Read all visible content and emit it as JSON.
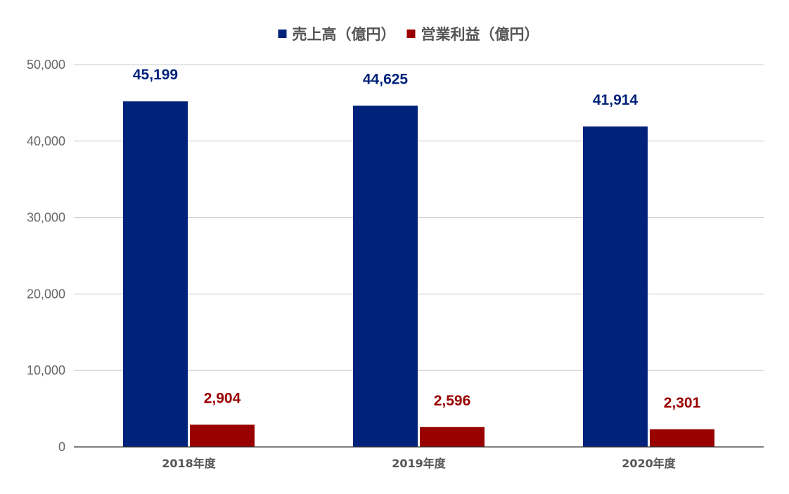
{
  "chart_data": {
    "type": "bar",
    "categories": [
      "2018年度",
      "2019年度",
      "2020年度"
    ],
    "series": [
      {
        "name": "売上高（億円）",
        "values": [
          45199,
          44625,
          41914
        ],
        "labels": [
          "45,199",
          "44,625",
          "41,914"
        ],
        "color": "#00227a"
      },
      {
        "name": "営業利益（億円）",
        "values": [
          2904,
          2596,
          2301
        ],
        "labels": [
          "2,904",
          "2,596",
          "2,301"
        ],
        "color": "#990000"
      }
    ],
    "y_ticks": [
      0,
      10000,
      20000,
      30000,
      40000,
      50000
    ],
    "y_tick_labels": [
      "0",
      "10,000",
      "20,000",
      "30,000",
      "40,000",
      "50,000"
    ],
    "ylim": [
      0,
      50000
    ],
    "grid": true,
    "legend_position": "top-center",
    "gridline_color": "#cccccc",
    "axis_color": "#333333"
  }
}
